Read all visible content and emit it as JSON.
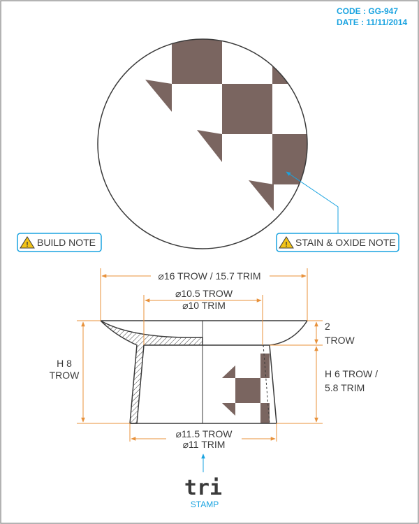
{
  "header": {
    "code": "CODE : GG-947",
    "date": "DATE : 11/11/2014"
  },
  "notes": {
    "build": "BUILD NOTE",
    "stain": "STAIN & OXIDE NOTE"
  },
  "dims": {
    "top_width": "⌀16 TROW / 15.7 TRIM",
    "inner_trow": "⌀10.5 TROW",
    "inner_trim": "⌀10 TRIM",
    "rim_value": "2",
    "rim_unit": "TROW",
    "height_label": "H 8",
    "height_unit": "TROW",
    "foot_line1": "H 6 TROW /",
    "foot_line2": "5.8 TRIM",
    "base_trow": "⌀11.5 TROW",
    "base_trim": "⌀11 TRIM"
  },
  "stamp": {
    "mark": "tri",
    "label": "STAMP"
  },
  "colors": {
    "accent": "#e8913a",
    "blue": "#1aa3e0",
    "glaze": "#7a6560",
    "line": "#3a3a3a"
  },
  "icons": {
    "warning": "warning-icon"
  }
}
